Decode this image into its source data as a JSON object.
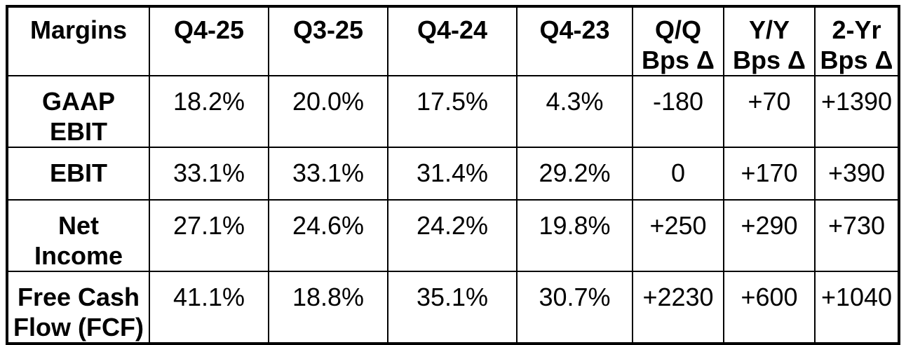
{
  "table": {
    "header": [
      {
        "l1": "Margins",
        "l2": ""
      },
      {
        "l1": "Q4-25",
        "l2": ""
      },
      {
        "l1": "Q3-25",
        "l2": ""
      },
      {
        "l1": "Q4-24",
        "l2": ""
      },
      {
        "l1": "Q4-23",
        "l2": ""
      },
      {
        "l1": "Q/Q",
        "l2": "Bps Δ"
      },
      {
        "l1": "Y/Y",
        "l2": "Bps Δ"
      },
      {
        "l1": "2-Yr",
        "l2": "Bps Δ"
      }
    ],
    "rows": [
      {
        "label": "GAAP EBIT",
        "values": [
          "18.2%",
          "20.0%",
          "17.5%",
          "4.3%",
          "-180",
          "+70",
          "+1390"
        ]
      },
      {
        "label": "EBIT",
        "values": [
          "33.1%",
          "33.1%",
          "31.4%",
          "29.2%",
          "0",
          "+170",
          "+390"
        ]
      },
      {
        "label": "Net Income",
        "values": [
          "27.1%",
          "24.6%",
          "24.2%",
          "19.8%",
          "+250",
          "+290",
          "+730"
        ]
      },
      {
        "label": "Free Cash Flow (FCF)",
        "values": [
          "41.1%",
          "18.8%",
          "35.1%",
          "30.7%",
          "+2230",
          "+600",
          "+1040"
        ]
      }
    ]
  },
  "chart_data": {
    "type": "table",
    "title": "Margins",
    "columns": [
      "Margins",
      "Q4-25",
      "Q3-25",
      "Q4-24",
      "Q4-23",
      "Q/Q Bps Δ",
      "Y/Y Bps Δ",
      "2-Yr Bps Δ"
    ],
    "rows": [
      [
        "GAAP EBIT",
        "18.2%",
        "20.0%",
        "17.5%",
        "4.3%",
        "-180",
        "+70",
        "+1390"
      ],
      [
        "EBIT",
        "33.1%",
        "33.1%",
        "31.4%",
        "29.2%",
        "0",
        "+170",
        "+390"
      ],
      [
        "Net Income",
        "27.1%",
        "24.6%",
        "24.2%",
        "19.8%",
        "+250",
        "+290",
        "+730"
      ],
      [
        "Free Cash Flow (FCF)",
        "41.1%",
        "18.8%",
        "35.1%",
        "30.7%",
        "+2230",
        "+600",
        "+1040"
      ]
    ],
    "layout": {
      "grid": true,
      "border_color": "#000000",
      "background": "#ffffff",
      "header_style": "bold",
      "row_label_style": "bold"
    }
  }
}
